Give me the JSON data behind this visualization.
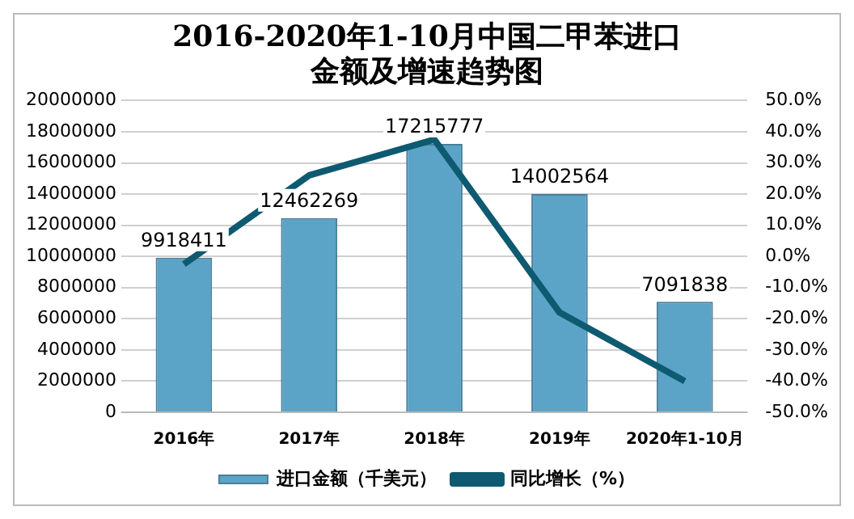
{
  "chart_data": {
    "type": "bar",
    "title": "2016-2020年1-10月中国二甲苯进口金额及增速趋势图",
    "categories": [
      "2016年",
      "2017年",
      "2018年",
      "2019年",
      "2020年1-10月"
    ],
    "series": [
      {
        "name": "进口金额（千美元）",
        "color": "#5ba3c7",
        "values": [
          9918411,
          12462269,
          17215777,
          14002564,
          7091838
        ],
        "value_labels": [
          "9918411",
          "12462269",
          "17215777",
          "14002564",
          "7091838"
        ]
      },
      {
        "name": "同比增长（%）",
        "type": "line",
        "axis": "y2",
        "color": "#0e5a70",
        "values": [
          -2.5,
          26,
          37.5,
          -18,
          -40
        ]
      }
    ],
    "ylim": [
      0,
      20000000
    ],
    "yticks": [
      0,
      2000000,
      4000000,
      6000000,
      8000000,
      10000000,
      12000000,
      14000000,
      16000000,
      18000000,
      20000000
    ],
    "y2lim": [
      -50,
      50
    ],
    "y2ticks": [
      {
        "value": -50,
        "label": "-50.0%"
      },
      {
        "value": -40,
        "label": "-40.0%"
      },
      {
        "value": -30,
        "label": "-30.0%"
      },
      {
        "value": -20,
        "label": "-20.0%"
      },
      {
        "value": -10,
        "label": "-10.0%"
      },
      {
        "value": 0,
        "label": "0.0%"
      },
      {
        "value": 10,
        "label": "10.0%"
      },
      {
        "value": 20,
        "label": "20.0%"
      },
      {
        "value": 30,
        "label": "30.0%"
      },
      {
        "value": 40,
        "label": "40.0%"
      },
      {
        "value": 50,
        "label": "50.0%"
      }
    ],
    "grid": "y",
    "legend": "bottom",
    "marker": "none",
    "line_style": "solid"
  }
}
